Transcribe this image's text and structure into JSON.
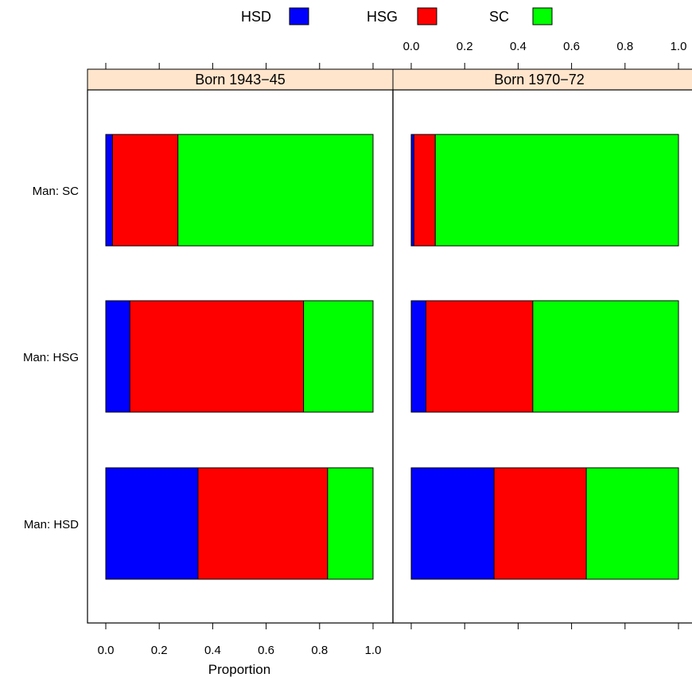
{
  "chart_data": {
    "type": "bar",
    "orientation": "horizontal",
    "stacked": true,
    "xlabel": "Proportion",
    "xlim": [
      0,
      1
    ],
    "x_ticks": [
      "0.0",
      "0.2",
      "0.4",
      "0.6",
      "0.8",
      "1.0"
    ],
    "legend": {
      "position": "top",
      "entries": [
        {
          "name": "HSD",
          "color": "#0000ff"
        },
        {
          "name": "HSG",
          "color": "#ff0000"
        },
        {
          "name": "SC",
          "color": "#00ff00"
        }
      ]
    },
    "categories": [
      "Man: SC",
      "Man: HSG",
      "Man: HSD"
    ],
    "panels": [
      {
        "title": "Born 1943−45",
        "series": [
          {
            "name": "HSD",
            "values": [
              0.025,
              0.09,
              0.345
            ]
          },
          {
            "name": "HSG",
            "values": [
              0.245,
              0.65,
              0.485
            ]
          },
          {
            "name": "SC",
            "values": [
              0.73,
              0.26,
              0.17
            ]
          }
        ]
      },
      {
        "title": "Born 1970−72",
        "series": [
          {
            "name": "HSD",
            "values": [
              0.01,
              0.055,
              0.31
            ]
          },
          {
            "name": "HSG",
            "values": [
              0.08,
              0.4,
              0.345
            ]
          },
          {
            "name": "SC",
            "values": [
              0.91,
              0.545,
              0.345
            ]
          }
        ]
      }
    ],
    "strip_color": "#ffe5cc"
  }
}
